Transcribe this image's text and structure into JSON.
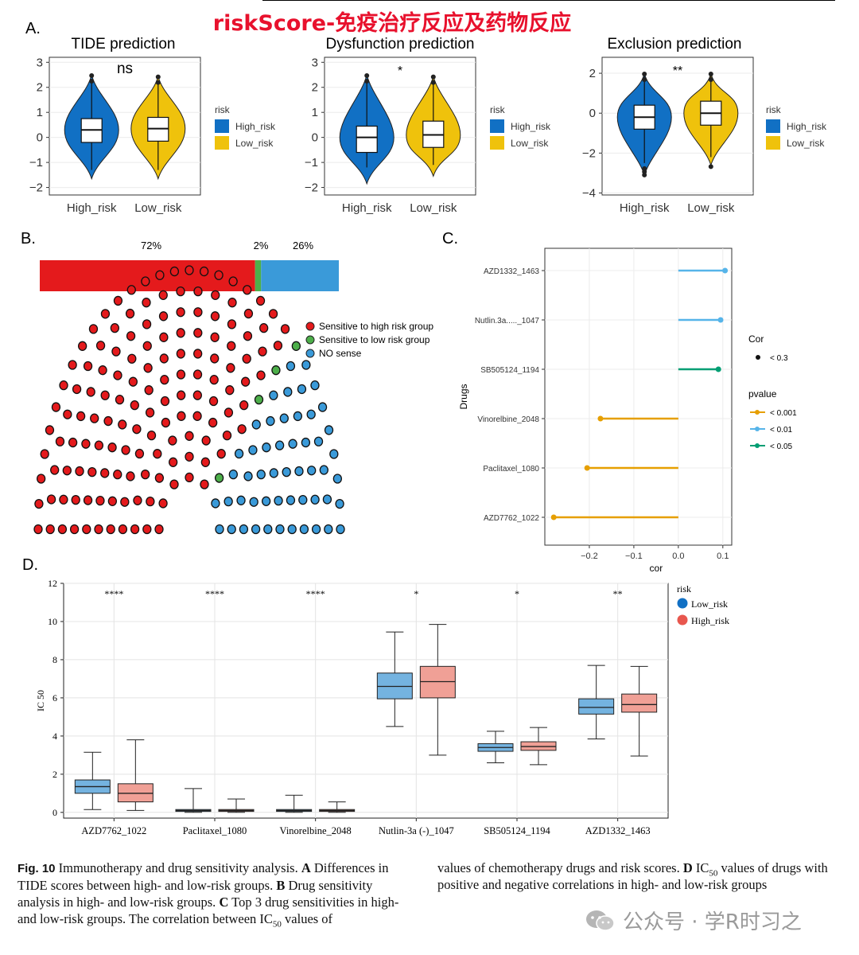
{
  "header_title": "riskScore-免疫治疗反应及药物反应",
  "panels": {
    "a_letter": "A.",
    "b_letter": "B.",
    "c_letter": "C.",
    "d_letter": "D."
  },
  "colors": {
    "high_risk": "#1170C4",
    "low_risk": "#EFC20C",
    "header_red": "#E8112D",
    "sensitive_high": "#E41A1C",
    "sensitive_low": "#4DAF4A",
    "no_sense": "#3A9AD9",
    "p001": "#E69F00",
    "p01": "#56B4E9",
    "p05": "#009E73",
    "d_low": "#74B3E0",
    "d_high": "#F0A096"
  },
  "chart_data": [
    {
      "type": "violin",
      "title": "TIDE prediction",
      "categories": [
        "High_risk",
        "Low_risk"
      ],
      "yticks": [
        "3",
        "2",
        "1",
        "0",
        "−1",
        "−2"
      ],
      "ylim": [
        -2.3,
        3.2
      ],
      "significance": "ns",
      "legend_title": "risk",
      "legend_items": [
        "High_risk",
        "Low_risk"
      ],
      "boxes": [
        {
          "name": "High_risk",
          "min": -1.3,
          "q1": -0.2,
          "median": 0.3,
          "q3": 0.75,
          "max": 2.2,
          "violin_min": -1.65,
          "violin_max": 2.5
        },
        {
          "name": "Low_risk",
          "min": -1.3,
          "q1": -0.15,
          "median": 0.35,
          "q3": 0.8,
          "max": 2.2,
          "violin_min": -1.65,
          "violin_max": 2.45
        }
      ]
    },
    {
      "type": "violin",
      "title": "Dysfunction prediction",
      "categories": [
        "High_risk",
        "Low_risk"
      ],
      "yticks": [
        "3",
        "2",
        "1",
        "0",
        "−1",
        "−2"
      ],
      "ylim": [
        -2.3,
        3.2
      ],
      "significance": "*",
      "legend_title": "risk",
      "legend_items": [
        "High_risk",
        "Low_risk"
      ],
      "boxes": [
        {
          "name": "High_risk",
          "min": -1.2,
          "q1": -0.6,
          "median": 0.0,
          "q3": 0.45,
          "max": 2.2,
          "violin_min": -1.85,
          "violin_max": 2.5
        },
        {
          "name": "Low_risk",
          "min": -1.1,
          "q1": -0.4,
          "median": 0.1,
          "q3": 0.65,
          "max": 2.3,
          "violin_min": -1.55,
          "violin_max": 2.45
        }
      ]
    },
    {
      "type": "violin",
      "title": "Exclusion prediction",
      "categories": [
        "High_risk",
        "Low_risk"
      ],
      "yticks": [
        "2",
        "0",
        "−2",
        "−4"
      ],
      "ylim": [
        -4.1,
        2.8
      ],
      "significance": "**",
      "legend_title": "risk",
      "legend_items": [
        "High_risk",
        "Low_risk"
      ],
      "boxes": [
        {
          "name": "High_risk",
          "min": -2.5,
          "q1": -0.8,
          "median": -0.2,
          "q3": 0.4,
          "max": 1.9,
          "violin_min": -3.1,
          "violin_max": 2.0
        },
        {
          "name": "Low_risk",
          "min": -2.2,
          "q1": -0.6,
          "median": 0.0,
          "q3": 0.6,
          "max": 2.0,
          "violin_min": -2.6,
          "violin_max": 2.0
        }
      ]
    },
    {
      "type": "bar",
      "title": "",
      "categories": [
        "Sensitive to high risk group",
        "Sensitive to low risk group",
        "NO sense"
      ],
      "values": [
        72,
        2,
        26
      ],
      "value_labels": [
        "72%",
        "2%",
        "26%"
      ],
      "legend_items": [
        "Sensitive to high risk group",
        "Sensitive to low risk group",
        "NO sense"
      ],
      "dot_counts": [
        144,
        4,
        52
      ]
    },
    {
      "type": "lollipop",
      "xlabel": "cor",
      "ylabel": "Drugs",
      "xlim": [
        -0.3,
        0.12
      ],
      "xticks": [
        "−0.2",
        "−0.1",
        "0.0",
        "0.1"
      ],
      "xtick_values": [
        -0.2,
        -0.1,
        0.0,
        0.1
      ],
      "drugs": [
        "AZD1332_1463",
        "Nutlin.3a....._1047",
        "SB505124_1194",
        "Vinorelbine_2048",
        "Paclitaxel_1080",
        "AZD7762_1022"
      ],
      "cor": [
        0.105,
        0.095,
        0.09,
        -0.175,
        -0.205,
        -0.28
      ],
      "pvalue_group": [
        "< 0.01",
        "< 0.01",
        "< 0.05",
        "< 0.001",
        "< 0.001",
        "< 0.001"
      ],
      "legend_cor_title": "Cor",
      "legend_cor_item": "< 0.3",
      "legend_p_title": "pvalue",
      "legend_p_items": [
        "< 0.001",
        "< 0.01",
        "< 0.05"
      ]
    },
    {
      "type": "boxplot",
      "ylabel": "IC 50",
      "ylim": [
        -0.3,
        12
      ],
      "yticks": [
        "0",
        "2",
        "4",
        "6",
        "8",
        "10",
        "12"
      ],
      "ytick_values": [
        0,
        2,
        4,
        6,
        8,
        10,
        12
      ],
      "categories": [
        "AZD7762_1022",
        "Paclitaxel_1080",
        "Vinorelbine_2048",
        "Nutlin-3a (-)_1047",
        "SB505124_1194",
        "AZD1332_1463"
      ],
      "significance": [
        "****",
        "****",
        "****",
        "*",
        "*",
        "**"
      ],
      "legend_title": "risk",
      "series": [
        {
          "name": "Low_risk",
          "boxes": [
            {
              "min": 0.15,
              "q1": 1.0,
              "median": 1.35,
              "q3": 1.7,
              "max": 3.15
            },
            {
              "min": 0.0,
              "q1": 0.05,
              "median": 0.1,
              "q3": 0.15,
              "max": 1.25
            },
            {
              "min": 0.0,
              "q1": 0.05,
              "median": 0.1,
              "q3": 0.15,
              "max": 0.9
            },
            {
              "min": 4.5,
              "q1": 5.95,
              "median": 6.6,
              "q3": 7.3,
              "max": 9.45
            },
            {
              "min": 2.6,
              "q1": 3.2,
              "median": 3.4,
              "q3": 3.6,
              "max": 4.25
            },
            {
              "min": 3.85,
              "q1": 5.15,
              "median": 5.5,
              "q3": 5.95,
              "max": 7.7
            }
          ]
        },
        {
          "name": "High_risk",
          "boxes": [
            {
              "min": 0.1,
              "q1": 0.55,
              "median": 1.0,
              "q3": 1.5,
              "max": 3.8
            },
            {
              "min": 0.0,
              "q1": 0.05,
              "median": 0.1,
              "q3": 0.15,
              "max": 0.7
            },
            {
              "min": 0.0,
              "q1": 0.05,
              "median": 0.1,
              "q3": 0.15,
              "max": 0.55
            },
            {
              "min": 3.0,
              "q1": 6.0,
              "median": 6.85,
              "q3": 7.65,
              "max": 9.85
            },
            {
              "min": 2.5,
              "q1": 3.25,
              "median": 3.45,
              "q3": 3.7,
              "max": 4.45
            },
            {
              "min": 2.95,
              "q1": 5.25,
              "median": 5.65,
              "q3": 6.2,
              "max": 7.65
            }
          ]
        }
      ]
    }
  ],
  "caption": {
    "fig_label": "Fig. 10",
    "text_1": " Immunotherapy and drug sensitivity analysis. ",
    "a": "A",
    "text_2": " Differences in TIDE scores between high- and low-risk groups. ",
    "b": "B",
    "text_3": " Drug sensitivity analysis in high- and low-risk groups. ",
    "c": "C",
    "text_4": " Top 3 drug sensitivities in high- and low-risk groups. The correlation between IC",
    "sub_50": "50",
    "text_5": " values of chemotherapy drugs and risk scores. ",
    "d": "D",
    "text_6": " IC",
    "sub_50b": "50",
    "text_7": " values of drugs with positive and negative correlations in high- and low-risk groups"
  },
  "watermark": "公众号 · 学R时习之"
}
